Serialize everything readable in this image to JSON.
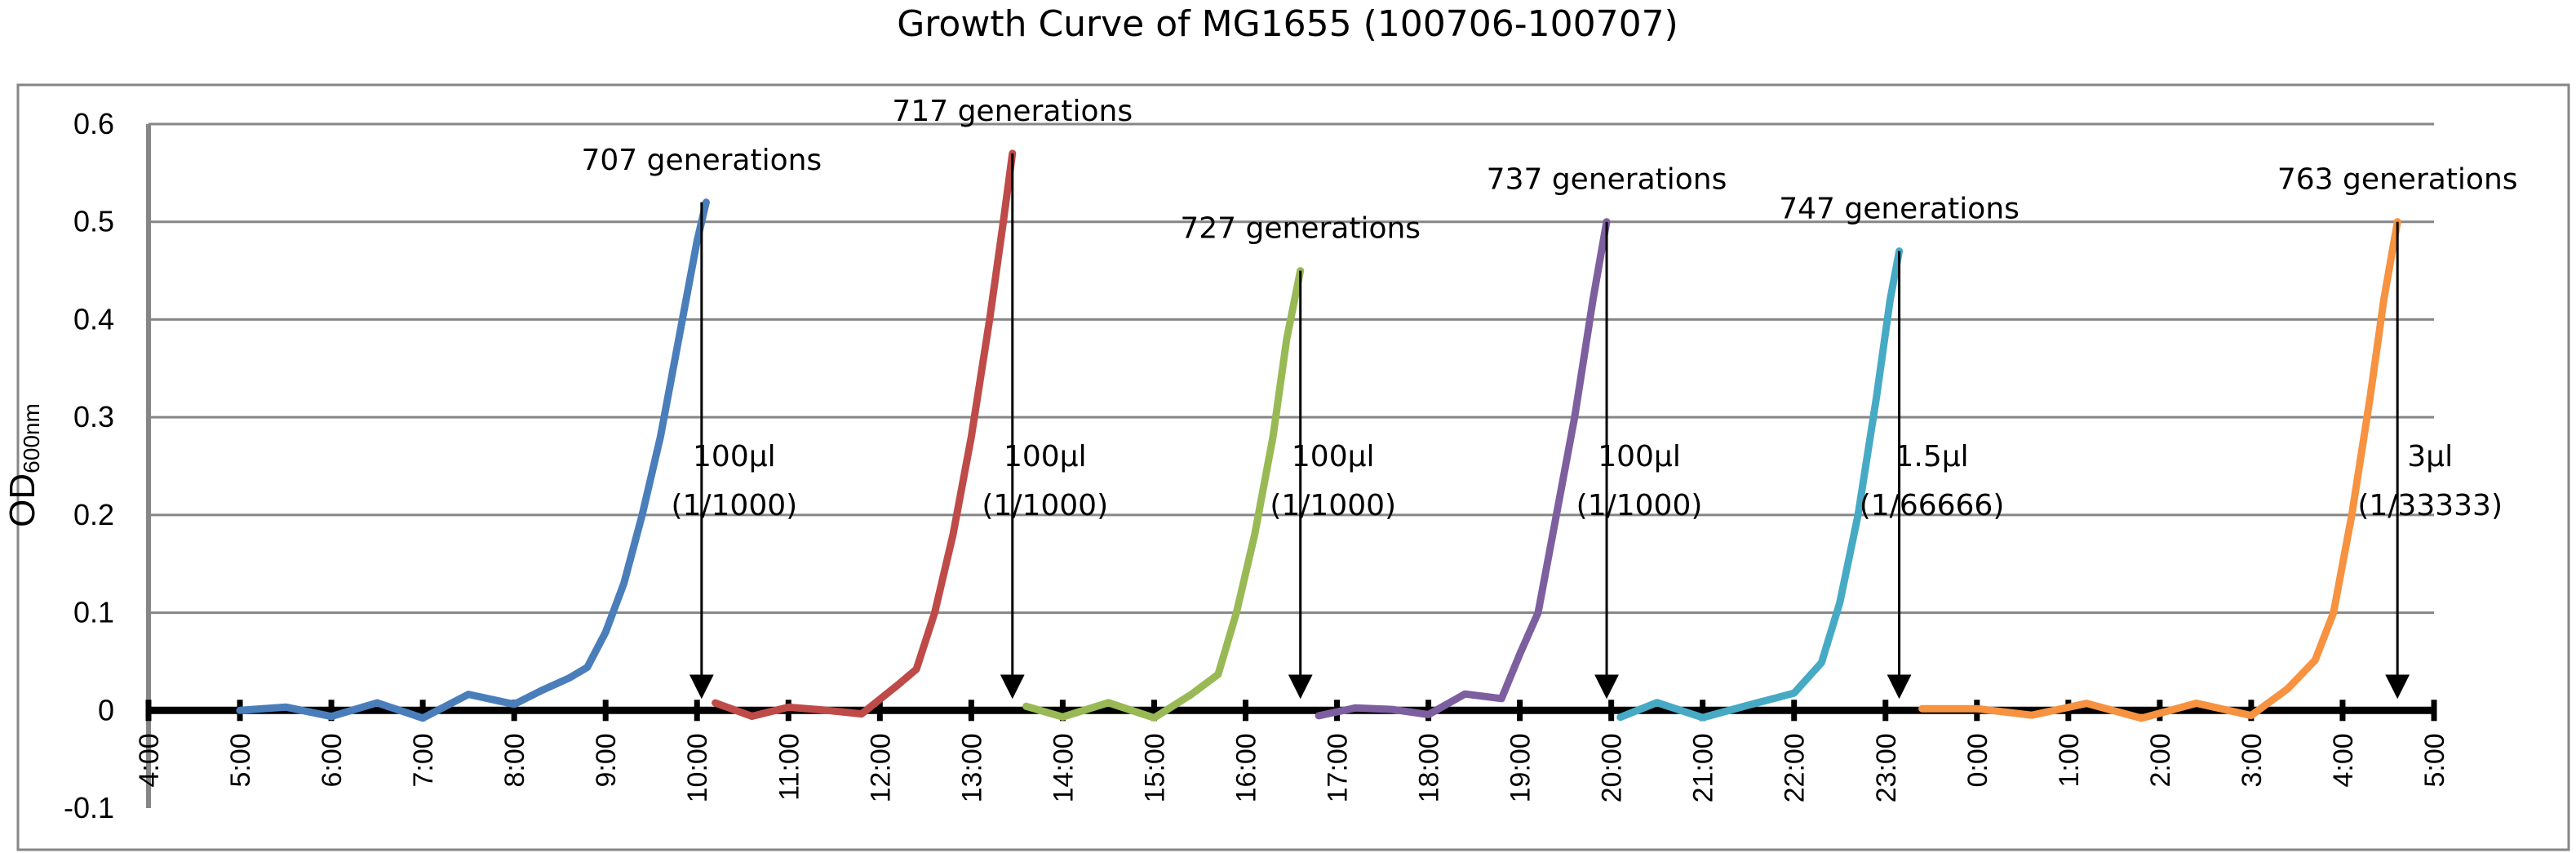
{
  "chart_data": {
    "type": "line",
    "title": "Growth Curve of MG1655 (100706-100707)",
    "ylabel_main": "OD",
    "ylabel_sub": "600nm",
    "xlabel": "",
    "xlim": [
      4,
      29
    ],
    "ylim": [
      -0.1,
      0.6
    ],
    "yticks": [
      -0.1,
      0,
      0.1,
      0.2,
      0.3,
      0.4,
      0.5,
      0.6
    ],
    "ytick_labels": [
      "-0.1",
      "0",
      "0.1",
      "0.2",
      "0.3",
      "0.4",
      "0.5",
      "0.6"
    ],
    "xticks": [
      4,
      5,
      6,
      7,
      8,
      9,
      10,
      11,
      12,
      13,
      14,
      15,
      16,
      17,
      18,
      19,
      20,
      21,
      22,
      23,
      24,
      25,
      26,
      27,
      28,
      29
    ],
    "xtick_labels": [
      "4:00",
      "5:00",
      "6:00",
      "7:00",
      "8:00",
      "9:00",
      "10:00",
      "11:00",
      "12:00",
      "13:00",
      "14:00",
      "15:00",
      "16:00",
      "17:00",
      "18:00",
      "19:00",
      "20:00",
      "21:00",
      "22:00",
      "23:00",
      "0:00",
      "1:00",
      "2:00",
      "3:00",
      "4:00",
      "5:00"
    ],
    "grid": true,
    "legend": "none",
    "series": [
      {
        "color": "#4A7EBB",
        "x": [
          5.0,
          5.5,
          6.0,
          6.5,
          7.0,
          7.5,
          8.0,
          8.3,
          8.6,
          8.8,
          9.0,
          9.2,
          9.4,
          9.6,
          9.8,
          10.0,
          10.1
        ],
        "y": [
          0.0,
          0.0,
          0.0,
          0.0,
          0.0,
          0.01,
          0.01,
          0.02,
          0.03,
          0.05,
          0.08,
          0.13,
          0.2,
          0.28,
          0.38,
          0.48,
          0.52
        ]
      },
      {
        "color": "#BE4B48",
        "x": [
          10.2,
          10.6,
          11.0,
          11.4,
          11.8,
          12.2,
          12.4,
          12.6,
          12.8,
          13.0,
          13.2,
          13.35,
          13.45
        ],
        "y": [
          0.0,
          0.0,
          0.0,
          0.0,
          0.0,
          0.02,
          0.05,
          0.1,
          0.18,
          0.28,
          0.4,
          0.5,
          0.57
        ]
      },
      {
        "color": "#98B954",
        "x": [
          13.6,
          14.0,
          14.5,
          15.0,
          15.4,
          15.7,
          15.9,
          16.1,
          16.3,
          16.45,
          16.6
        ],
        "y": [
          0.0,
          0.0,
          0.0,
          0.0,
          0.01,
          0.04,
          0.1,
          0.18,
          0.28,
          0.38,
          0.45
        ]
      },
      {
        "color": "#7D5FA0",
        "x": [
          16.8,
          17.2,
          17.6,
          18.0,
          18.4,
          18.8,
          19.0,
          19.2,
          19.4,
          19.6,
          19.8,
          19.95
        ],
        "y": [
          0.0,
          0.0,
          0.0,
          0.0,
          0.01,
          0.02,
          0.05,
          0.1,
          0.2,
          0.3,
          0.42,
          0.5
        ]
      },
      {
        "color": "#46AAC5",
        "x": [
          20.1,
          20.5,
          21.0,
          21.5,
          22.0,
          22.3,
          22.5,
          22.7,
          22.9,
          23.05,
          23.15
        ],
        "y": [
          0.0,
          0.0,
          0.0,
          0.0,
          0.02,
          0.05,
          0.11,
          0.2,
          0.32,
          0.42,
          0.47
        ]
      },
      {
        "color": "#F69240",
        "x": [
          23.4,
          24.0,
          24.6,
          25.2,
          25.8,
          26.4,
          27.0,
          27.4,
          27.7,
          27.9,
          28.1,
          28.3,
          28.45,
          28.6
        ],
        "y": [
          0.0,
          0.0,
          0.0,
          0.0,
          0.0,
          0.0,
          0.0,
          0.02,
          0.05,
          0.1,
          0.2,
          0.32,
          0.42,
          0.5
        ]
      }
    ],
    "annotations": [
      {
        "label": "707 generations",
        "x": 10.05,
        "y": 0.52,
        "note1": "100μl",
        "note2": "(1/1000)"
      },
      {
        "label": "717 generations",
        "x": 13.45,
        "y": 0.57,
        "note1": "100μl",
        "note2": "(1/1000)"
      },
      {
        "label": "727 generations",
        "x": 16.6,
        "y": 0.45,
        "note1": "100μl",
        "note2": "(1/1000)"
      },
      {
        "label": "737 generations",
        "x": 19.95,
        "y": 0.5,
        "note1": "100μl",
        "note2": "(1/1000)"
      },
      {
        "label": "747 generations",
        "x": 23.15,
        "y": 0.47,
        "note1": "1.5μl",
        "note2": "(1/66666)"
      },
      {
        "label": "763 generations",
        "x": 28.6,
        "y": 0.5,
        "note1": "3μl",
        "note2": "(1/33333)"
      }
    ]
  }
}
